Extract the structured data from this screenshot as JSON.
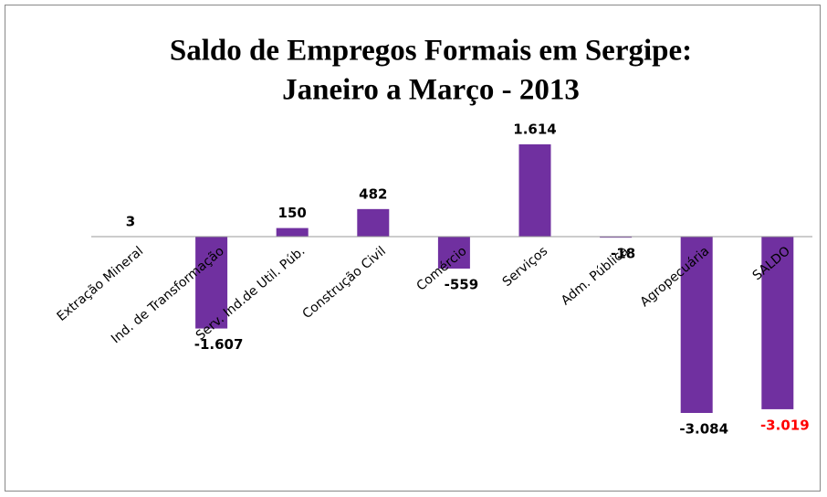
{
  "chart_data": {
    "type": "bar",
    "title": [
      "Saldo de Empregos Formais em Sergipe:",
      "Janeiro a Março - 2013"
    ],
    "categories": [
      "Extração Mineral",
      "Ind. de Transformação",
      "Serv. Ind.de Util. Púb.",
      "Construção Civil",
      "Comércio",
      "Serviços",
      "Adm. Pública",
      "Agropecuária",
      "SALDO"
    ],
    "values": [
      3,
      -1607,
      150,
      482,
      -559,
      1614,
      -18,
      -3084,
      -3019
    ],
    "value_labels": [
      "3",
      "-1.607",
      "150",
      "482",
      "-559",
      "1.614",
      "-18",
      "-3.084",
      "-3.019"
    ],
    "value_label_colors": [
      "#000000",
      "#000000",
      "#000000",
      "#000000",
      "#000000",
      "#000000",
      "#000000",
      "#000000",
      "#ff0000"
    ],
    "color": "#7030a0"
  }
}
